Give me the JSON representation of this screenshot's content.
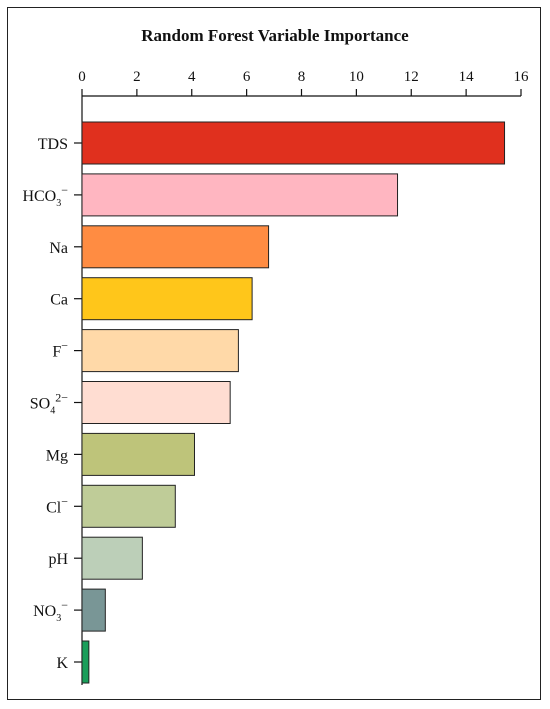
{
  "chart_data": {
    "type": "bar",
    "orientation": "horizontal",
    "title": "Random Forest Variable Importance",
    "xlabel": "",
    "ylabel": "",
    "xlim": [
      0,
      16
    ],
    "xticks": [
      0,
      2,
      4,
      6,
      8,
      10,
      12,
      14,
      16
    ],
    "x_axis_position": "top",
    "grid": false,
    "legend": "none",
    "categories": [
      {
        "base": "TDS",
        "sub": "",
        "sup": ""
      },
      {
        "base": "HCO",
        "sub": "3",
        "sup": "−"
      },
      {
        "base": "Na",
        "sub": "",
        "sup": ""
      },
      {
        "base": "Ca",
        "sub": "",
        "sup": ""
      },
      {
        "base": "F",
        "sub": "",
        "sup": "−"
      },
      {
        "base": "SO",
        "sub": "4",
        "sup": "2−"
      },
      {
        "base": "Mg",
        "sub": "",
        "sup": ""
      },
      {
        "base": "Cl",
        "sub": "",
        "sup": "−"
      },
      {
        "base": "pH",
        "sub": "",
        "sup": ""
      },
      {
        "base": "NO",
        "sub": "3",
        "sup": "−"
      },
      {
        "base": "K",
        "sub": "",
        "sup": ""
      }
    ],
    "values": [
      15.4,
      11.5,
      6.8,
      6.2,
      5.7,
      5.4,
      4.1,
      3.4,
      2.2,
      0.85,
      0.25
    ],
    "colors": [
      "#e0301e",
      "#ffb6c1",
      "#ff8c42",
      "#ffc61a",
      "#ffd9a8",
      "#ffddd2",
      "#bec47a",
      "#bfcc98",
      "#bccfb8",
      "#799696",
      "#1a9e5a"
    ]
  }
}
